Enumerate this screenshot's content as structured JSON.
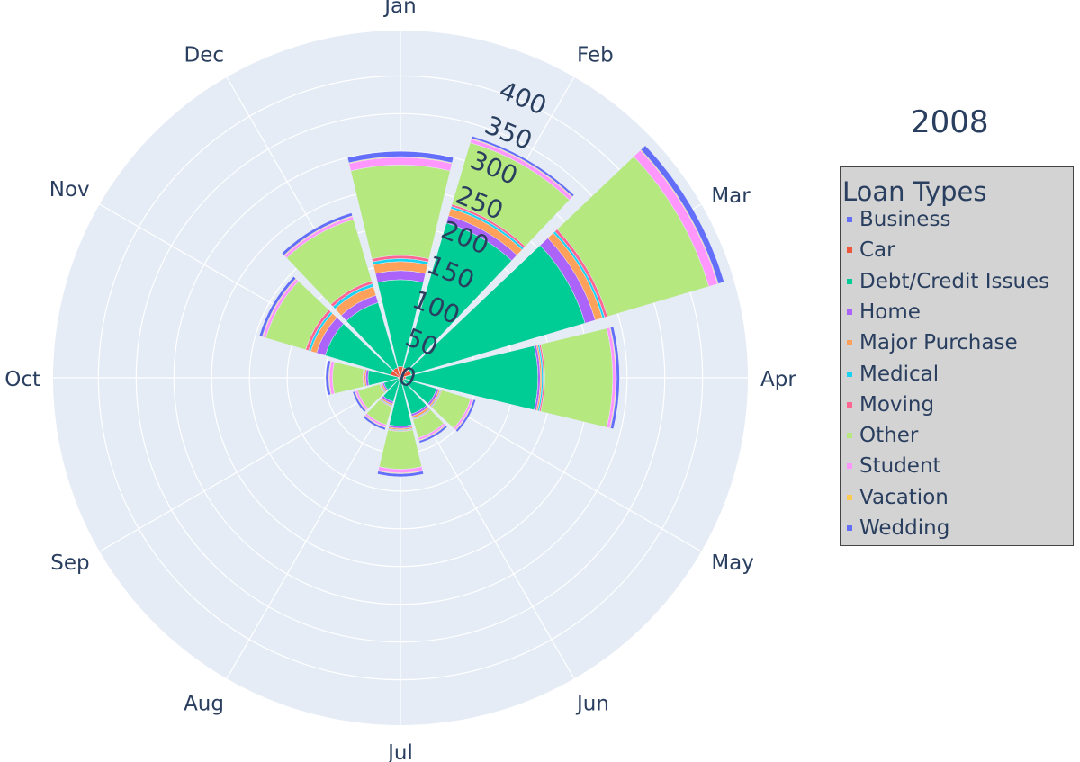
{
  "chart_data": {
    "type": "barpolar",
    "title": "2008",
    "legend": {
      "title": "Loan Types",
      "placement": "right",
      "background": "#d3d3d3"
    },
    "angular_categories": [
      "Jan",
      "Feb",
      "Mar",
      "Apr",
      "May",
      "Jun",
      "Jul",
      "Aug",
      "Sep",
      "Oct",
      "Nov",
      "Dec"
    ],
    "angular_direction": "clockwise",
    "radial_ticks": [
      0,
      50,
      100,
      150,
      200,
      250,
      300,
      350,
      400
    ],
    "radial_range": [
      0,
      460
    ],
    "grid": true,
    "series": [
      {
        "name": "Business",
        "color": "#636efa",
        "values": [
          3,
          4,
          3,
          4,
          2,
          2,
          2,
          1,
          1,
          1,
          2,
          2
        ]
      },
      {
        "name": "Car",
        "color": "#EF553B",
        "values": [
          12,
          10,
          12,
          3,
          3,
          3,
          2,
          2,
          2,
          2,
          12,
          12
        ]
      },
      {
        "name": "Debt/Credit Issues",
        "color": "#00cc96",
        "values": [
          115,
          200,
          240,
          175,
          45,
          45,
          60,
          30,
          20,
          40,
          90,
          90
        ]
      },
      {
        "name": "Home",
        "color": "#ab63fa",
        "values": [
          12,
          10,
          14,
          3,
          3,
          3,
          3,
          3,
          2,
          3,
          12,
          10
        ]
      },
      {
        "name": "Major Purchase",
        "color": "#FFA15A",
        "values": [
          12,
          10,
          10,
          2,
          2,
          3,
          2,
          2,
          2,
          2,
          8,
          12
        ]
      },
      {
        "name": "Medical",
        "color": "#19d3f3",
        "values": [
          4,
          3,
          3,
          2,
          1,
          1,
          1,
          1,
          1,
          1,
          3,
          4
        ]
      },
      {
        "name": "Moving",
        "color": "#FF6692",
        "values": [
          4,
          3,
          4,
          2,
          1,
          1,
          1,
          1,
          1,
          1,
          4,
          4
        ]
      },
      {
        "name": "Other",
        "color": "#B6E880",
        "values": [
          120,
          85,
          140,
          90,
          40,
          25,
          50,
          25,
          30,
          40,
          55,
          85
        ]
      },
      {
        "name": "Student",
        "color": "#FF97FF",
        "values": [
          10,
          5,
          12,
          4,
          3,
          3,
          5,
          3,
          3,
          4,
          4,
          4
        ]
      },
      {
        "name": "Vacation",
        "color": "#FECB52",
        "values": [
          1,
          1,
          1,
          1,
          1,
          1,
          1,
          1,
          1,
          1,
          1,
          1
        ]
      },
      {
        "name": "Wedding",
        "color": "#636efa",
        "values": [
          7,
          3,
          8,
          4,
          3,
          3,
          4,
          3,
          3,
          4,
          4,
          4
        ]
      }
    ]
  }
}
